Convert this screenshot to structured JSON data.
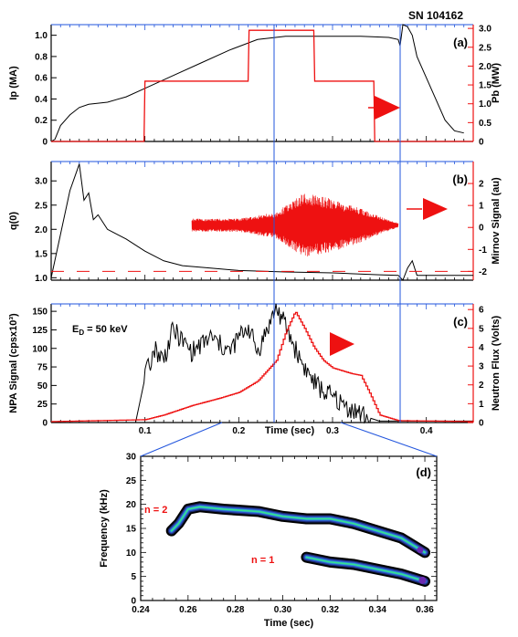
{
  "shot_label": "SN 104162",
  "colors": {
    "black": "#000000",
    "red": "#ee1111",
    "blue": "#2255dd"
  },
  "chart_data": [
    {
      "id": "a",
      "panel_label": "(a)",
      "type": "line",
      "xlim": [
        0,
        0.45
      ],
      "ylabel_left": "Ip (MA)",
      "ylim_left": [
        0,
        1.1
      ],
      "yticks_left": [
        0,
        0.2,
        0.4,
        0.6,
        0.8,
        1.0
      ],
      "ytick_labels_left": [
        "0",
        "0.2",
        "0.4",
        "0.6",
        "0.8",
        "1.0"
      ],
      "ylabel_right": "Pb (MW)",
      "ylim_right": [
        0,
        3.1
      ],
      "yticks_right": [
        0,
        0.5,
        1.0,
        1.5,
        2.0,
        2.5,
        3.0
      ],
      "ytick_labels_right": [
        "0",
        "0.5",
        "1.0",
        "1.5",
        "2.0",
        "2.5",
        "3.0"
      ],
      "series": [
        {
          "axis": "left",
          "color": "#000000",
          "x": [
            0,
            0.004,
            0.01,
            0.02,
            0.03,
            0.04,
            0.06,
            0.08,
            0.1,
            0.13,
            0.16,
            0.19,
            0.22,
            0.25,
            0.28,
            0.3,
            0.33,
            0.36,
            0.37,
            0.372,
            0.375,
            0.38,
            0.385,
            0.39,
            0.4,
            0.41,
            0.42,
            0.43,
            0.44
          ],
          "y": [
            0,
            0.02,
            0.15,
            0.25,
            0.32,
            0.35,
            0.37,
            0.42,
            0.5,
            0.62,
            0.74,
            0.86,
            0.96,
            0.99,
            0.99,
            0.99,
            0.99,
            0.98,
            0.96,
            0.9,
            1.1,
            1.08,
            1.0,
            0.8,
            0.6,
            0.4,
            0.2,
            0.1,
            0.08
          ]
        },
        {
          "axis": "right",
          "color": "#ee1111",
          "x": [
            0,
            0.099,
            0.1,
            0.21,
            0.211,
            0.28,
            0.281,
            0.344,
            0.345,
            0.45
          ],
          "y": [
            0,
            0,
            1.6,
            1.6,
            2.95,
            2.95,
            1.6,
            1.6,
            0,
            0
          ]
        }
      ]
    },
    {
      "id": "b",
      "panel_label": "(b)",
      "type": "line",
      "xlim": [
        0,
        0.45
      ],
      "ylabel_left": "q(0)",
      "ylim_left": [
        0.95,
        3.4
      ],
      "yticks_left": [
        1.0,
        1.5,
        2.0,
        2.5,
        3.0
      ],
      "ytick_labels_left": [
        "1.0",
        "1.5",
        "2.0",
        "2.5",
        "3.0"
      ],
      "ylabel_right": "Mirnov Signal (au)",
      "ylim_right": [
        -2.4,
        3.0
      ],
      "yticks_right": [
        -2,
        -1,
        0,
        1,
        2
      ],
      "ytick_labels_right": [
        "-2",
        "-1",
        "0",
        "1",
        "2"
      ],
      "series": [
        {
          "axis": "left",
          "color": "#000000",
          "x": [
            0,
            0.01,
            0.02,
            0.03,
            0.035,
            0.04,
            0.045,
            0.05,
            0.06,
            0.08,
            0.1,
            0.12,
            0.14,
            0.17,
            0.2,
            0.25,
            0.3,
            0.35,
            0.37,
            0.375,
            0.38,
            0.385,
            0.39,
            0.45
          ],
          "y": [
            1.0,
            1.9,
            2.8,
            3.35,
            2.6,
            2.75,
            2.2,
            2.3,
            2.0,
            1.8,
            1.55,
            1.35,
            1.25,
            1.2,
            1.15,
            1.12,
            1.1,
            1.06,
            1.05,
            0.95,
            1.2,
            1.35,
            1.05,
            1.05
          ]
        },
        {
          "axis": "right",
          "color": "#ee1111",
          "kind": "oscillation",
          "start": 0.15,
          "end": 0.37,
          "envelope_x": [
            0.15,
            0.2,
            0.24,
            0.27,
            0.3,
            0.33,
            0.35,
            0.37
          ],
          "envelope_amplitude": [
            0.3,
            0.3,
            0.6,
            1.5,
            1.2,
            0.8,
            0.4,
            0.1
          ],
          "offset": 0.1
        }
      ]
    },
    {
      "id": "c",
      "panel_label": "(c)",
      "type": "line",
      "xlim": [
        0,
        0.45
      ],
      "xlabel": "Time (sec)",
      "xticks": [
        0.1,
        0.2,
        0.3,
        0.4
      ],
      "xtick_labels": [
        "0.1",
        "0.2",
        "0.3",
        "0.4"
      ],
      "ylabel_left": "NPA Signal (cpsx10³)",
      "ylim_left": [
        0,
        160
      ],
      "yticks_left": [
        0,
        25,
        50,
        75,
        100,
        125,
        150
      ],
      "ytick_labels_left": [
        "0",
        "25",
        "50",
        "75",
        "100",
        "125",
        "150"
      ],
      "ylabel_right": "Neutron Flux (Volts)",
      "ylim_right": [
        0,
        6.3
      ],
      "yticks_right": [
        0,
        1,
        2,
        3,
        4,
        5,
        6
      ],
      "ytick_labels_right": [
        "0",
        "1",
        "2",
        "3",
        "4",
        "5",
        "6"
      ],
      "annotation": "E",
      "annotation_sub": "D",
      "annotation_rest": " = 50 keV",
      "series": [
        {
          "axis": "left",
          "color": "#000000",
          "x": [
            0,
            0.09,
            0.1,
            0.11,
            0.12,
            0.13,
            0.15,
            0.17,
            0.19,
            0.2,
            0.21,
            0.22,
            0.24,
            0.25,
            0.26,
            0.27,
            0.28,
            0.29,
            0.3,
            0.31,
            0.32,
            0.33,
            0.34,
            0.35,
            0.45
          ],
          "y": [
            0,
            0,
            60,
            100,
            85,
            125,
            95,
            115,
            95,
            115,
            130,
            95,
            155,
            130,
            100,
            75,
            55,
            42,
            35,
            25,
            18,
            12,
            6,
            2,
            2
          ]
        },
        {
          "axis": "right",
          "color": "#ee1111",
          "x": [
            0,
            0.1,
            0.12,
            0.15,
            0.18,
            0.2,
            0.22,
            0.24,
            0.25,
            0.26,
            0.27,
            0.28,
            0.29,
            0.3,
            0.32,
            0.33,
            0.34,
            0.35,
            0.37,
            0.45
          ],
          "y": [
            0.05,
            0.15,
            0.4,
            0.9,
            1.3,
            1.6,
            2.2,
            3.3,
            4.8,
            5.9,
            5.0,
            4.0,
            3.3,
            2.9,
            2.6,
            2.5,
            1.5,
            0.4,
            0.1,
            0.05
          ]
        }
      ]
    },
    {
      "id": "d",
      "panel_label": "(d)",
      "type": "heatmap",
      "xlabel": "Time (sec)",
      "ylabel": "Frequency (kHz)",
      "xlim": [
        0.24,
        0.365
      ],
      "ylim": [
        0,
        30
      ],
      "xticks": [
        0.24,
        0.26,
        0.28,
        0.3,
        0.32,
        0.34,
        0.36
      ],
      "xtick_labels": [
        "0.24",
        "0.26",
        "0.28",
        "0.30",
        "0.32",
        "0.34",
        "0.36"
      ],
      "yticks": [
        0,
        5,
        10,
        15,
        20,
        25,
        30
      ],
      "ytick_labels": [
        "0",
        "5",
        "10",
        "15",
        "20",
        "25",
        "30"
      ],
      "modes": [
        {
          "label": "n = 2",
          "label_color": "#ee1111",
          "x": [
            0.253,
            0.256,
            0.26,
            0.265,
            0.275,
            0.29,
            0.3,
            0.31,
            0.32,
            0.33,
            0.34,
            0.35,
            0.36
          ],
          "y": [
            14.5,
            16,
            19,
            19.5,
            19,
            18.5,
            17.5,
            17,
            17,
            16,
            14.5,
            13,
            10
          ]
        },
        {
          "label": "n = 1",
          "label_color": "#ee1111",
          "x": [
            0.31,
            0.315,
            0.32,
            0.33,
            0.34,
            0.35,
            0.36
          ],
          "y": [
            9,
            8.5,
            8,
            7.5,
            6.5,
            5.5,
            4
          ]
        }
      ]
    }
  ]
}
